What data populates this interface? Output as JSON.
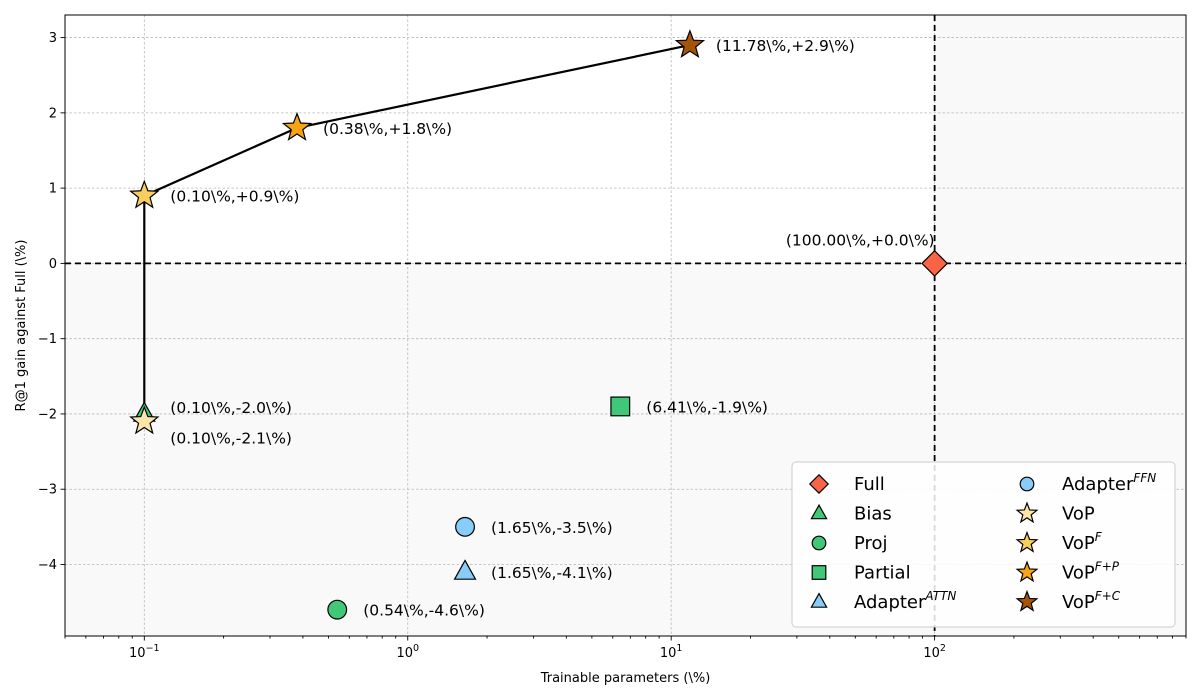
{
  "chart_data": {
    "type": "scatter",
    "title": "",
    "xlabel": "Trainable parameters (\\%)",
    "ylabel": "R@1 gain against Full (\\%)",
    "xscale": "log",
    "xlim": [
      0.05,
      900
    ],
    "ylim": [
      -4.95,
      3.3
    ],
    "grid": true,
    "x_ticks": [
      {
        "value": 0.1,
        "base": "10",
        "exp": "−1"
      },
      {
        "value": 1,
        "base": "10",
        "exp": "0"
      },
      {
        "value": 10,
        "base": "10",
        "exp": "1"
      },
      {
        "value": 100,
        "base": "10",
        "exp": "2"
      }
    ],
    "y_ticks": [
      {
        "value": 3,
        "label": "3"
      },
      {
        "value": 2,
        "label": "2"
      },
      {
        "value": 1,
        "label": "1"
      },
      {
        "value": 0,
        "label": "0"
      },
      {
        "value": -1,
        "label": "−1"
      },
      {
        "value": -2,
        "label": "−2"
      },
      {
        "value": -3,
        "label": "−3"
      },
      {
        "value": -4,
        "label": "−4"
      }
    ],
    "reference_lines": {
      "x": 100,
      "y": 0
    },
    "frontier": {
      "x": [
        0.1,
        0.1,
        0.38,
        11.78
      ],
      "y": [
        -2.0,
        0.9,
        1.8,
        2.9
      ]
    },
    "series": [
      {
        "name": "Full",
        "sup": "",
        "marker": "diamond",
        "color": "#fb6347",
        "points": [
          {
            "x": 100,
            "y": 0.0,
            "label": "(100.00\\%,+0.0\\%)"
          }
        ]
      },
      {
        "name": "Bias",
        "sup": "",
        "marker": "triangle",
        "color": "#40c878",
        "points": [
          {
            "x": 0.1,
            "y": -2.0,
            "label": "(0.10\\%,-2.0\\%)"
          }
        ]
      },
      {
        "name": "Proj",
        "sup": "",
        "marker": "circle",
        "color": "#40c878",
        "points": [
          {
            "x": 0.54,
            "y": -4.6,
            "label": "(0.54\\%,-4.6\\%)"
          }
        ]
      },
      {
        "name": "Partial",
        "sup": "",
        "marker": "square",
        "color": "#40c878",
        "points": [
          {
            "x": 6.41,
            "y": -1.9,
            "label": "(6.41\\%,-1.9\\%)"
          }
        ]
      },
      {
        "name": "Adapter",
        "sup": "ATTN",
        "marker": "triangle",
        "color": "#88cdf8",
        "points": [
          {
            "x": 1.65,
            "y": -4.1,
            "label": "(1.65\\%,-4.1\\%)"
          }
        ]
      },
      {
        "name": "Adapter",
        "sup": "FFN",
        "marker": "circle",
        "color": "#88cdf8",
        "points": [
          {
            "x": 1.65,
            "y": -3.5,
            "label": "(1.65\\%,-3.5\\%)"
          }
        ]
      },
      {
        "name": "VoP",
        "sup": "",
        "marker": "star",
        "color": "#fce5a8",
        "points": [
          {
            "x": 0.1,
            "y": -2.1,
            "label": "(0.10\\%,-2.1\\%)"
          }
        ]
      },
      {
        "name": "VoP",
        "sup": "F",
        "marker": "star",
        "color": "#f8ce5c",
        "points": [
          {
            "x": 0.1,
            "y": 0.9,
            "label": "(0.10\\%,+0.9\\%)"
          }
        ]
      },
      {
        "name": "VoP",
        "sup": "F+P",
        "marker": "star",
        "color": "#f8a414",
        "points": [
          {
            "x": 0.38,
            "y": 1.8,
            "label": "(0.38\\%,+1.8\\%)"
          }
        ]
      },
      {
        "name": "VoP",
        "sup": "F+C",
        "marker": "star",
        "color": "#a65408",
        "points": [
          {
            "x": 11.78,
            "y": 2.9,
            "label": "(11.78\\%,+2.9\\%)"
          }
        ]
      }
    ],
    "legend": {
      "position": "lower-right",
      "columns": 2
    }
  }
}
